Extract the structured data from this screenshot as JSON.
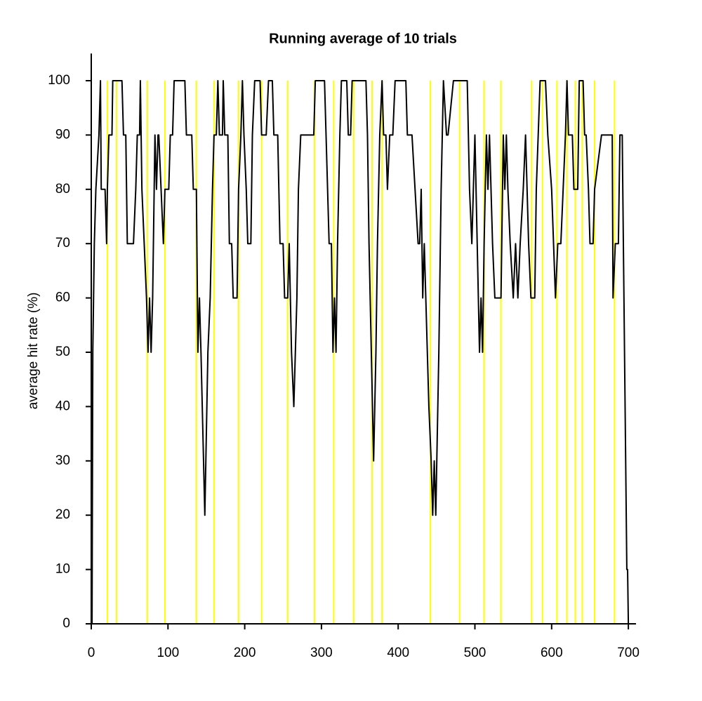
{
  "chart_data": {
    "type": "line",
    "title": "Running average of 10 trials",
    "y_label": "average hit rate (%)",
    "xlim": [
      0,
      710
    ],
    "ylim": [
      0,
      105
    ],
    "xticks": [
      0,
      100,
      200,
      300,
      400,
      500,
      600,
      700
    ],
    "yticks": [
      0,
      10,
      20,
      30,
      40,
      50,
      60,
      70,
      80,
      90,
      100
    ],
    "line_color": "#000000",
    "vline_color": "#ffff00",
    "vlines": [
      21,
      33,
      73,
      96,
      137,
      160,
      192,
      222,
      256,
      291,
      316,
      342,
      366,
      379,
      442,
      480,
      512,
      534,
      574,
      588,
      607,
      620,
      631,
      640,
      656,
      682
    ],
    "x": [
      0,
      1,
      2,
      4,
      6,
      8,
      10,
      12,
      13,
      18,
      20,
      21,
      23,
      27,
      28,
      40,
      42,
      45,
      47,
      55,
      58,
      60,
      63,
      64,
      66,
      69,
      72,
      74,
      76,
      78,
      80,
      82,
      83,
      85,
      87,
      88,
      91,
      94,
      96,
      101,
      103,
      106,
      108,
      122,
      124,
      131,
      133,
      137,
      139,
      141,
      143,
      148,
      152,
      155,
      158,
      160,
      163,
      165,
      167,
      171,
      172,
      174,
      178,
      180,
      183,
      185,
      190,
      192,
      195,
      197,
      199,
      202,
      204,
      208,
      210,
      213,
      220,
      222,
      228,
      231,
      236,
      238,
      243,
      246,
      250,
      252,
      256,
      258,
      261,
      264,
      266,
      268,
      270,
      273,
      290,
      292,
      304,
      306,
      308,
      310,
      313,
      315,
      317,
      319,
      321,
      324,
      326,
      333,
      335,
      338,
      340,
      358,
      360,
      362,
      365,
      368,
      371,
      373,
      376,
      379,
      381,
      384,
      386,
      389,
      393,
      396,
      410,
      412,
      418,
      422,
      426,
      428,
      430,
      432,
      434,
      438,
      440,
      443,
      445,
      447,
      449,
      453,
      456,
      459,
      463,
      465,
      472,
      490,
      493,
      496,
      498,
      500,
      503,
      506,
      508,
      510,
      512,
      515,
      517,
      519,
      521,
      523,
      526,
      534,
      537,
      539,
      541,
      543,
      546,
      550,
      553,
      556,
      559,
      563,
      566,
      570,
      573,
      578,
      580,
      585,
      592,
      595,
      600,
      605,
      608,
      612,
      615,
      618,
      620,
      622,
      627,
      629,
      634,
      636,
      641,
      643,
      645,
      648,
      650,
      654,
      656,
      665,
      672,
      679,
      680,
      683,
      687,
      689,
      692,
      698,
      699,
      700
    ],
    "values": [
      0,
      0,
      50,
      70,
      80,
      85,
      90,
      100,
      80,
      80,
      70,
      80,
      90,
      90,
      100,
      100,
      90,
      90,
      70,
      70,
      80,
      90,
      90,
      100,
      80,
      70,
      60,
      50,
      60,
      50,
      60,
      80,
      90,
      80,
      90,
      90,
      80,
      70,
      80,
      80,
      90,
      90,
      100,
      100,
      90,
      90,
      80,
      80,
      50,
      60,
      50,
      20,
      50,
      60,
      80,
      90,
      90,
      100,
      90,
      90,
      100,
      90,
      90,
      70,
      70,
      60,
      60,
      80,
      90,
      100,
      90,
      80,
      70,
      70,
      90,
      100,
      100,
      90,
      90,
      100,
      100,
      90,
      90,
      70,
      70,
      60,
      60,
      70,
      50,
      40,
      50,
      60,
      80,
      90,
      90,
      100,
      100,
      90,
      80,
      70,
      70,
      50,
      60,
      50,
      70,
      90,
      100,
      100,
      90,
      90,
      100,
      100,
      90,
      70,
      50,
      30,
      50,
      70,
      90,
      100,
      90,
      90,
      80,
      90,
      90,
      100,
      100,
      90,
      90,
      80,
      70,
      70,
      80,
      60,
      70,
      50,
      40,
      30,
      20,
      30,
      20,
      50,
      80,
      100,
      90,
      90,
      100,
      100,
      80,
      70,
      80,
      90,
      70,
      50,
      60,
      50,
      70,
      90,
      80,
      90,
      80,
      70,
      60,
      60,
      90,
      80,
      90,
      80,
      70,
      60,
      70,
      60,
      70,
      80,
      90,
      70,
      60,
      60,
      80,
      100,
      100,
      90,
      80,
      60,
      70,
      70,
      80,
      90,
      100,
      90,
      90,
      80,
      80,
      100,
      100,
      90,
      90,
      80,
      70,
      70,
      80,
      90,
      90,
      90,
      60,
      70,
      70,
      90,
      90,
      10,
      10,
      0
    ]
  }
}
